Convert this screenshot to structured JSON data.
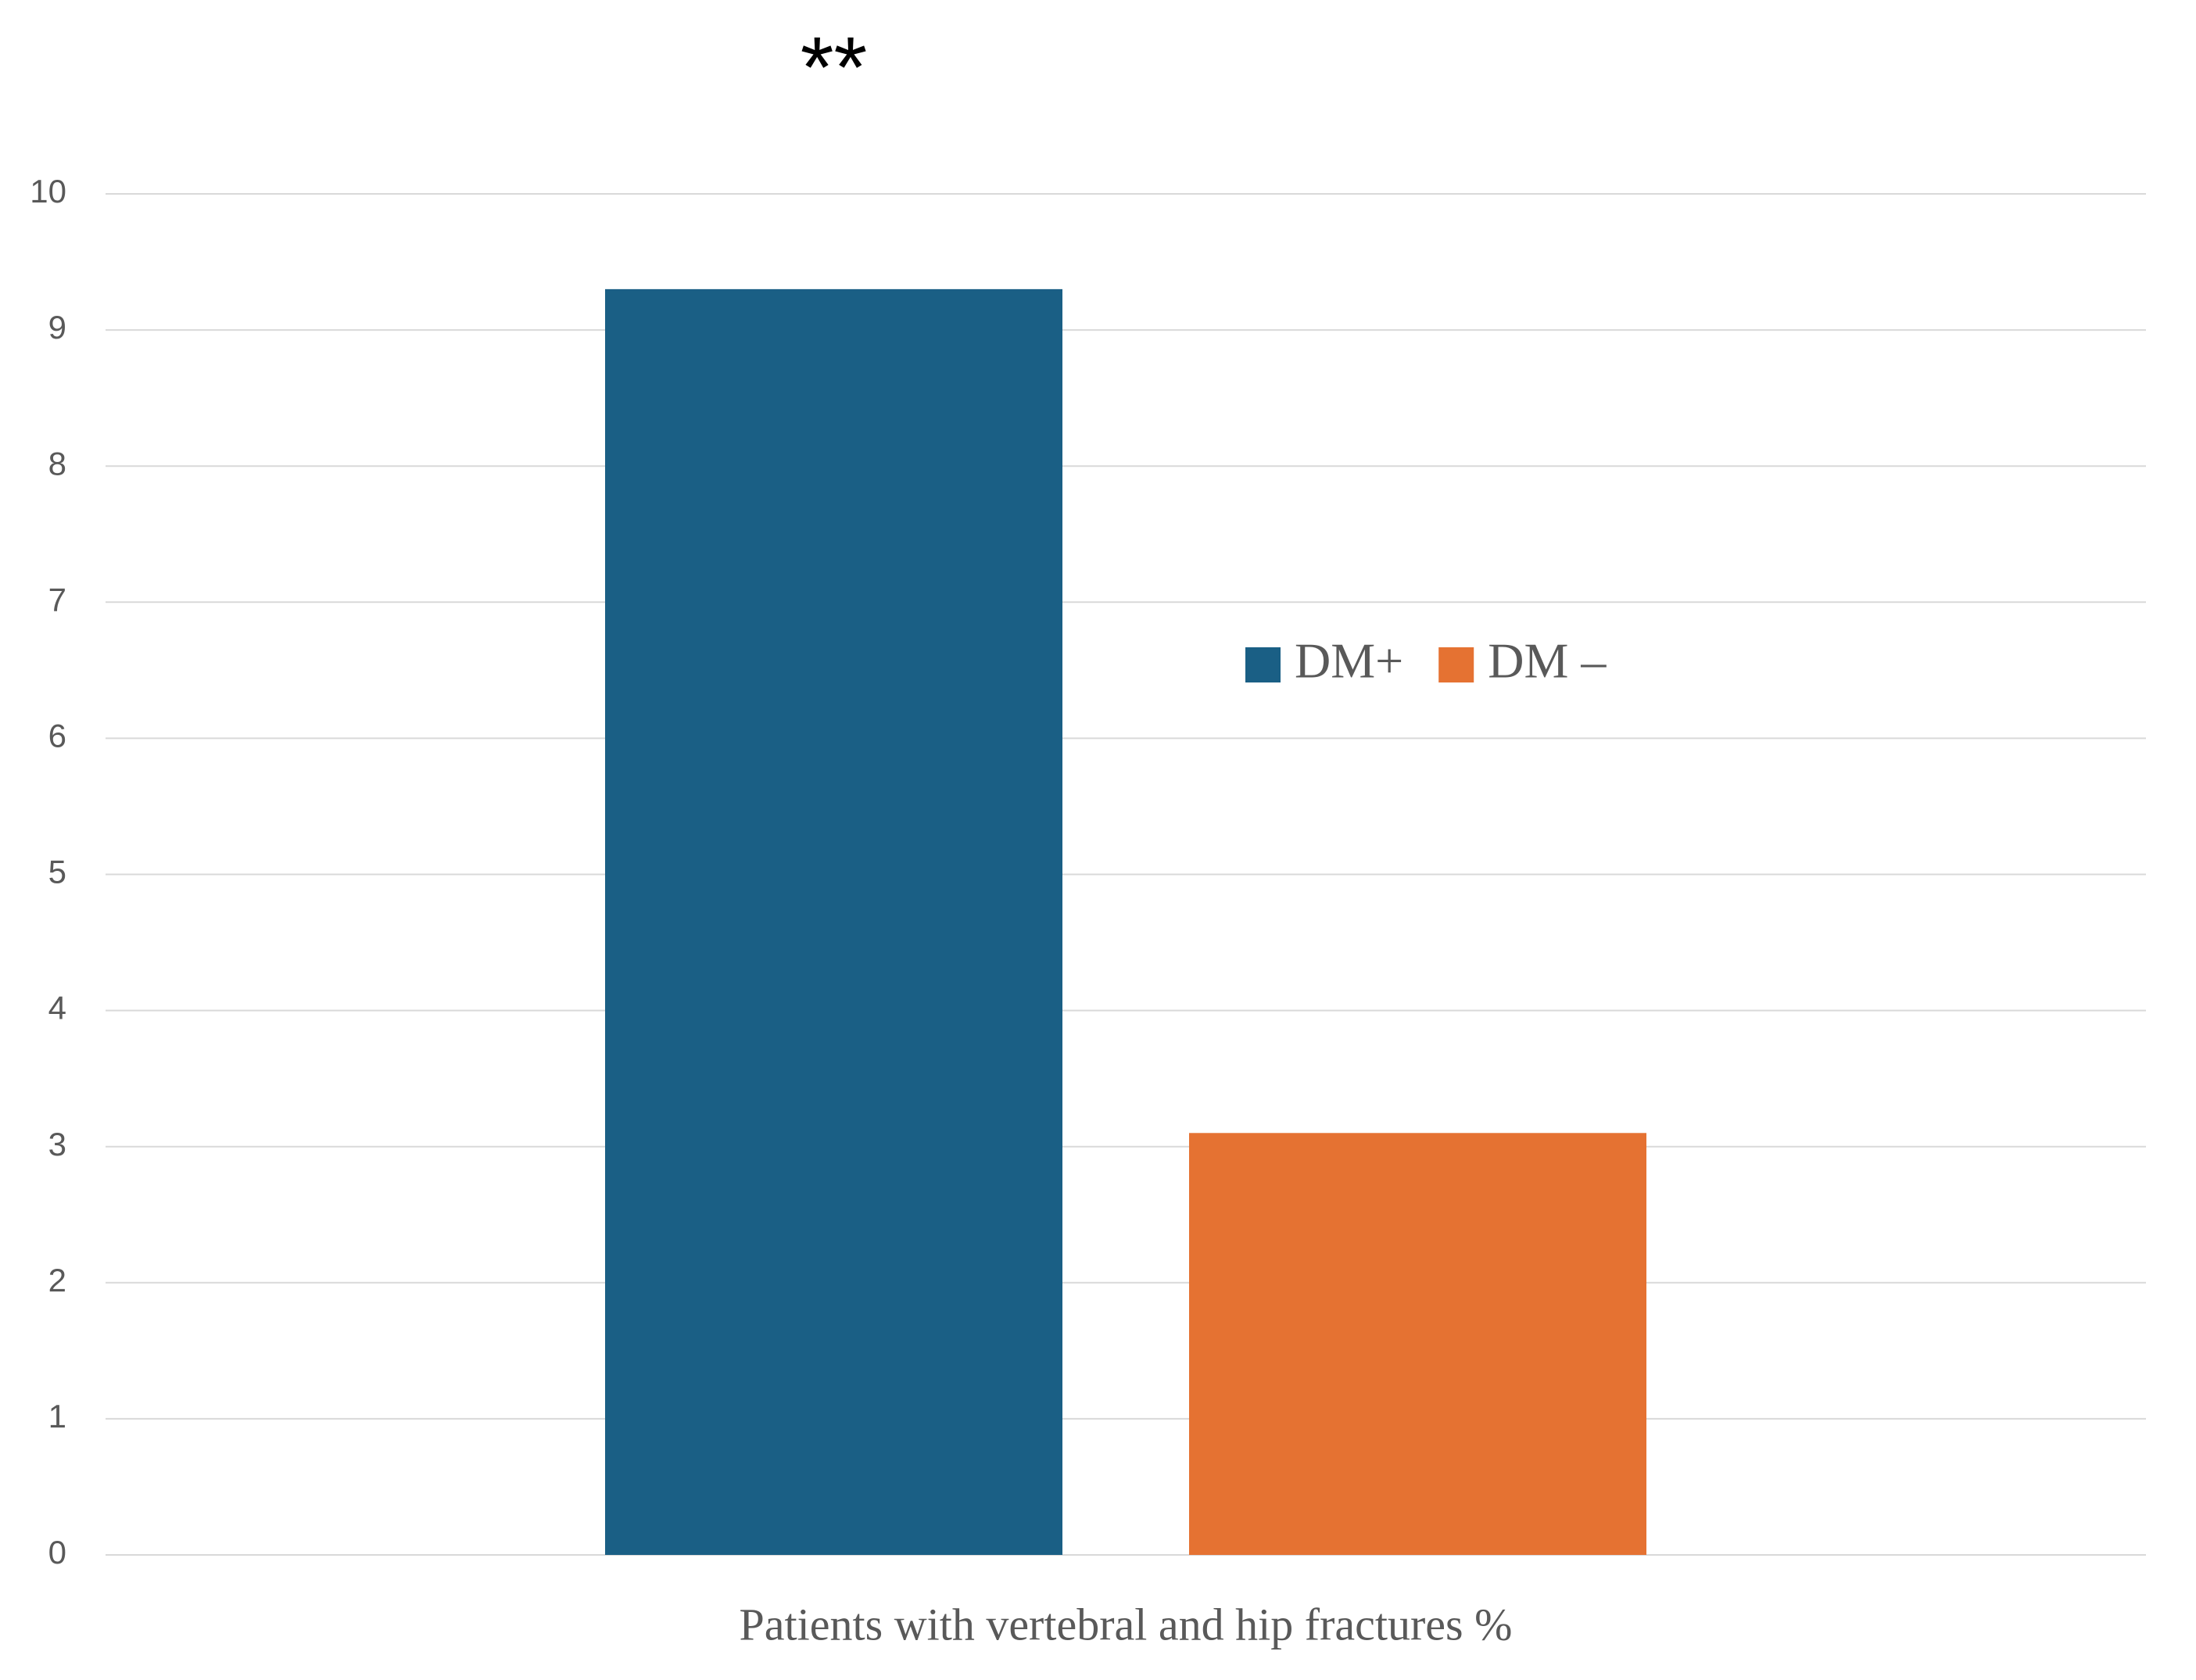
{
  "chart_data": {
    "type": "bar",
    "annotation": "**",
    "categories": [
      "Patients with vertebral and hip fractures %"
    ],
    "series": [
      {
        "name": "DM+",
        "color": "#1a5f85",
        "values": [
          9.3
        ]
      },
      {
        "name": "DM –",
        "color": "#e57232",
        "values": [
          3.1
        ]
      }
    ],
    "ylim": [
      0,
      10
    ],
    "yticks": [
      0,
      1,
      2,
      3,
      4,
      5,
      6,
      7,
      8,
      9,
      10
    ],
    "grid": true
  }
}
